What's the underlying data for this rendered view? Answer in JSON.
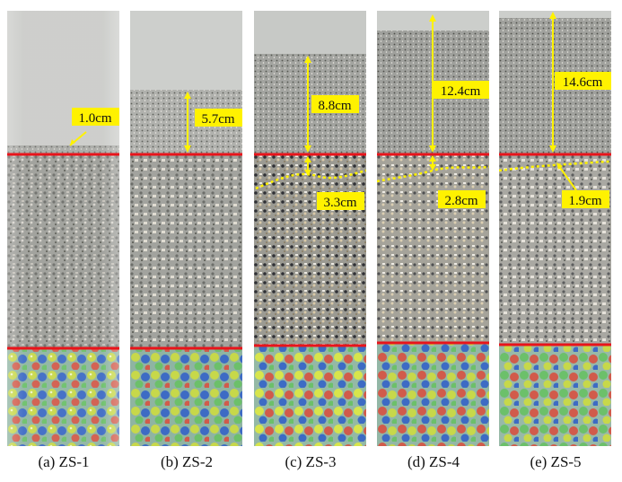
{
  "colors": {
    "boundary_line": "#e8141b",
    "arrow": "#fff200",
    "label_bg": "#fff200",
    "dotted_line": "#fff200",
    "marble_base": "#8fb7a5",
    "mixed_layer": "#9a9a94",
    "fine_layer": "#a8aaa8",
    "empty_tube": "#c9cbc8"
  },
  "panels": [
    {
      "caption": "(a) ZS-1",
      "label": "1.0cm"
    },
    {
      "caption": "(b) ZS-2",
      "label": "5.7cm"
    },
    {
      "caption": "(c) ZS-3",
      "label": "8.8cm",
      "label2": "3.3cm"
    },
    {
      "caption": "(d) ZS-4",
      "label": "12.4cm",
      "label2": "2.8cm"
    },
    {
      "caption": "(e) ZS-5",
      "label": "14.6cm",
      "label2": "1.9cm"
    }
  ]
}
